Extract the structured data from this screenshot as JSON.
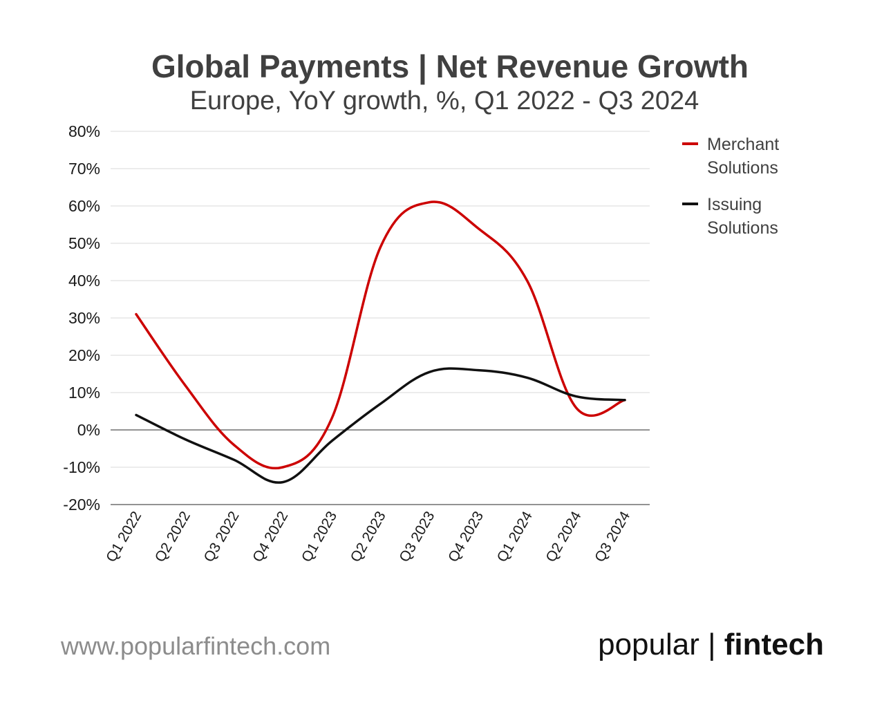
{
  "chart_data": {
    "type": "line",
    "title": "Global Payments | Net Revenue Growth",
    "subtitle": "Europe, YoY growth, %, Q1 2022 - Q3 2024",
    "categories": [
      "Q1 2022",
      "Q2 2022",
      "Q3 2022",
      "Q4 2022",
      "Q1 2023",
      "Q2 2023",
      "Q3 2023",
      "Q4 2023",
      "Q1 2024",
      "Q2 2024",
      "Q3 2024"
    ],
    "series": [
      {
        "name": "Merchant Solutions",
        "color": "#cc0000",
        "values": [
          31,
          12,
          -4,
          -10,
          3,
          49,
          61,
          54,
          40,
          6,
          8
        ]
      },
      {
        "name": "Issuing Solutions",
        "color": "#111111",
        "values": [
          4,
          -2.5,
          -8,
          -14,
          -3,
          7,
          15.5,
          16,
          14,
          9,
          8
        ]
      }
    ],
    "ylim": [
      -20,
      80
    ],
    "yticks": [
      80,
      70,
      60,
      50,
      40,
      30,
      20,
      10,
      0,
      -10,
      -20
    ],
    "ytick_labels": [
      "80%",
      "70%",
      "60%",
      "50%",
      "40%",
      "30%",
      "20%",
      "10%",
      "0%",
      "-10%",
      "-20%"
    ],
    "xlabel": "",
    "ylabel": "",
    "grid": true,
    "legend_position": "right"
  },
  "legend": {
    "merchant_line1": "Merchant",
    "merchant_line2": "Solutions",
    "issuing_line1": "Issuing",
    "issuing_line2": "Solutions"
  },
  "footer": {
    "url": "www.popularfintech.com",
    "brand_light": "popular | ",
    "brand_bold": "fintech"
  }
}
